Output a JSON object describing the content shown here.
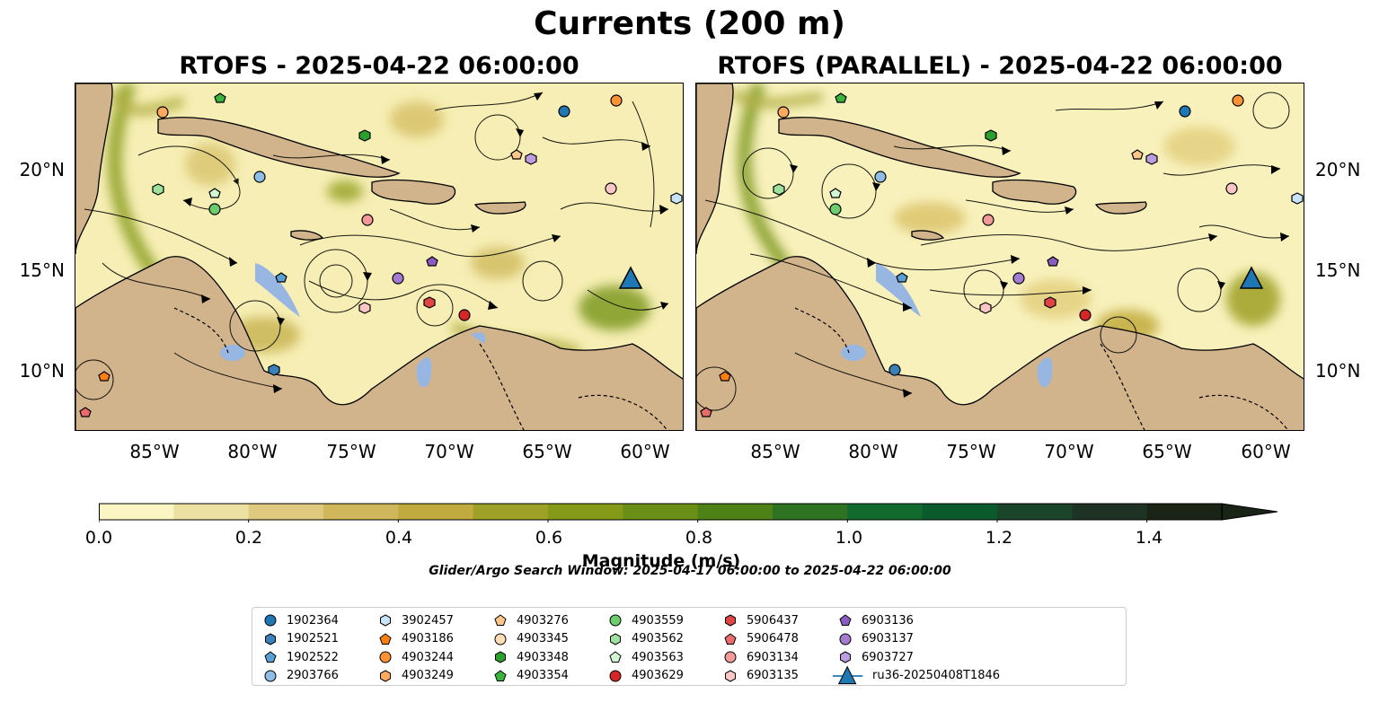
{
  "figure": {
    "suptitle": "Currents (200 m)",
    "panels": [
      {
        "title": "RTOFS - 2025-04-22 06:00:00"
      },
      {
        "title": "RTOFS (PARALLEL) - 2025-04-22 06:00:00"
      }
    ],
    "x_ticks": [
      "85°W",
      "80°W",
      "75°W",
      "70°W",
      "65°W",
      "60°W"
    ],
    "y_ticks": [
      "20°N",
      "15°N",
      "10°N"
    ],
    "colors": {
      "ocean_low": "#f8f1b8",
      "ocean_high": "#1e2b16",
      "land": "#d2b48c",
      "water": "#97b6e1"
    }
  },
  "colorbar": {
    "label": "Magnitude (m/s)",
    "ticks": [
      "0.0",
      "0.2",
      "0.4",
      "0.6",
      "0.8",
      "1.0",
      "1.2",
      "1.4"
    ],
    "range": [
      0,
      1.5
    ],
    "colors": [
      "#fbf5c3",
      "#ece0a2",
      "#dfc97e",
      "#d0b75c",
      "#c1ab3e",
      "#9ea027",
      "#869a1a",
      "#6a8f16",
      "#4e8217",
      "#2e7322",
      "#126a2f",
      "#0b5a2c",
      "#1b452b",
      "#1f3324",
      "#1a2416"
    ]
  },
  "search_window": "Glider/Argo Search Window: 2025-04-17 06:00:00 to 2025-04-22 06:00:00",
  "legend": {
    "items": [
      {
        "label": "1902364",
        "marker": "circle",
        "color": "#1f77b4"
      },
      {
        "label": "1902521",
        "marker": "hexagon",
        "color": "#3a80ba"
      },
      {
        "label": "1902522",
        "marker": "pentagon",
        "color": "#5a9fd4"
      },
      {
        "label": "2903766",
        "marker": "circle",
        "color": "#8fbde6"
      },
      {
        "label": "3902457",
        "marker": "hexagon",
        "color": "#c6e3f7"
      },
      {
        "label": "4903186",
        "marker": "pentagon",
        "color": "#ff7f0e"
      },
      {
        "label": "4903244",
        "marker": "circle",
        "color": "#ff9232"
      },
      {
        "label": "4903249",
        "marker": "hexagon",
        "color": "#ffaa5e"
      },
      {
        "label": "4903276",
        "marker": "pentagon",
        "color": "#ffc68a"
      },
      {
        "label": "4903345",
        "marker": "circle",
        "color": "#ffddb8"
      },
      {
        "label": "4903348",
        "marker": "hexagon",
        "color": "#2ca02c"
      },
      {
        "label": "4903354",
        "marker": "pentagon",
        "color": "#3cb33c"
      },
      {
        "label": "4903559",
        "marker": "circle",
        "color": "#6ccd6c"
      },
      {
        "label": "4903562",
        "marker": "hexagon",
        "color": "#9ee09e"
      },
      {
        "label": "4903563",
        "marker": "pentagon",
        "color": "#d2f5d2"
      },
      {
        "label": "4903629",
        "marker": "circle",
        "color": "#d62728"
      },
      {
        "label": "5906437",
        "marker": "hexagon",
        "color": "#df4545"
      },
      {
        "label": "5906478",
        "marker": "pentagon",
        "color": "#ea6b6b"
      },
      {
        "label": "6903134",
        "marker": "circle",
        "color": "#f29a9a"
      },
      {
        "label": "6903135",
        "marker": "hexagon",
        "color": "#fbc6c6"
      },
      {
        "label": "6903136",
        "marker": "pentagon",
        "color": "#8a5cc2"
      },
      {
        "label": "6903137",
        "marker": "circle",
        "color": "#a47bd0"
      },
      {
        "label": "6903727",
        "marker": "hexagon",
        "color": "#bb9de0"
      },
      {
        "label": "ru36-20250408T1846",
        "marker": "triangle",
        "color": "#1f77b4"
      }
    ]
  }
}
